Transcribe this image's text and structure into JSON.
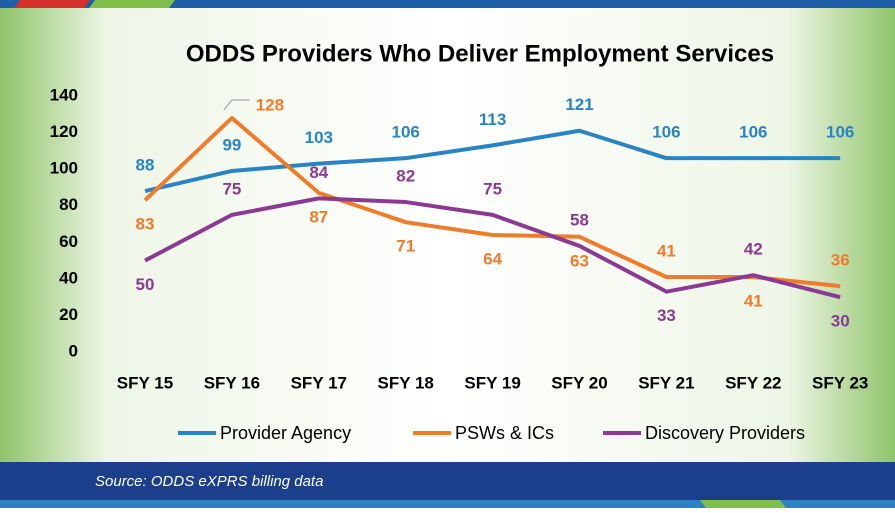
{
  "chart_data": {
    "type": "line",
    "title": "ODDS Providers Who Deliver Employment Services",
    "categories": [
      "SFY 15",
      "SFY 16",
      "SFY 17",
      "SFY 18",
      "SFY 19",
      "SFY 20",
      "SFY 21",
      "SFY 22",
      "SFY 23"
    ],
    "series": [
      {
        "name": "Provider Agency",
        "color": "#2a84c4",
        "values": [
          88,
          99,
          103,
          106,
          113,
          121,
          106,
          106,
          106
        ]
      },
      {
        "name": "PSWs & ICs",
        "color": "#f07c2b",
        "values": [
          83,
          128,
          87,
          71,
          64,
          63,
          41,
          41,
          36
        ]
      },
      {
        "name": "Discovery Providers",
        "color": "#8b3a94",
        "values": [
          50,
          75,
          84,
          82,
          75,
          58,
          33,
          42,
          30
        ]
      }
    ],
    "ylim": [
      0,
      140
    ],
    "yticks": [
      0,
      20,
      40,
      60,
      80,
      100,
      120,
      140
    ],
    "grid": false,
    "source": "Source: ODDS eXPRS billing data"
  }
}
